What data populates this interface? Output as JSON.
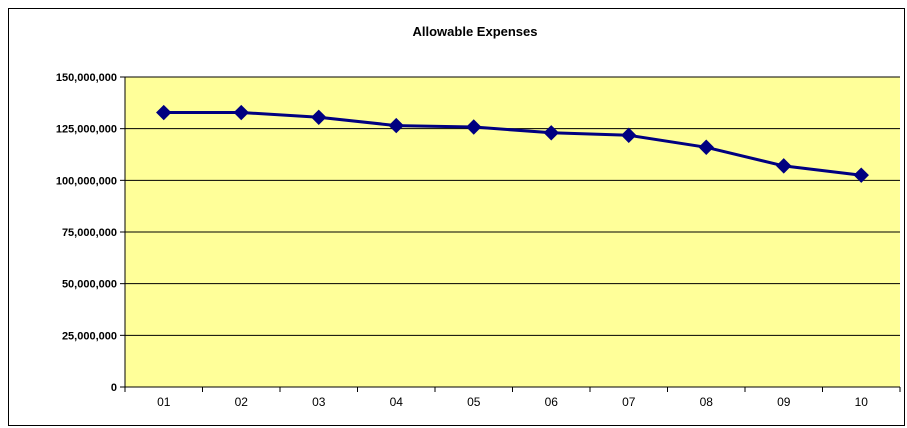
{
  "chart_data": {
    "type": "line",
    "title": "Allowable Expenses",
    "xlabel": "",
    "ylabel": "",
    "categories": [
      "01",
      "02",
      "03",
      "04",
      "05",
      "06",
      "07",
      "08",
      "09",
      "10"
    ],
    "series": [
      {
        "values": [
          132800000,
          132800000,
          130500000,
          126500000,
          125800000,
          123000000,
          121800000,
          116000000,
          107000000,
          102500000
        ]
      }
    ],
    "ylim": [
      0,
      150000000
    ],
    "yticks": [
      0,
      25000000,
      50000000,
      75000000,
      100000000,
      125000000,
      150000000
    ],
    "ytick_labels": [
      "0",
      "25,000,000",
      "50,000,000",
      "75,000,000",
      "100,000,000",
      "125,000,000",
      "150,000,000"
    ],
    "grid": "horizontal",
    "legend": "none",
    "colors": {
      "plot_background": "#ffff99",
      "line": "#000080",
      "marker": "#000080",
      "gridline": "#000000"
    }
  }
}
